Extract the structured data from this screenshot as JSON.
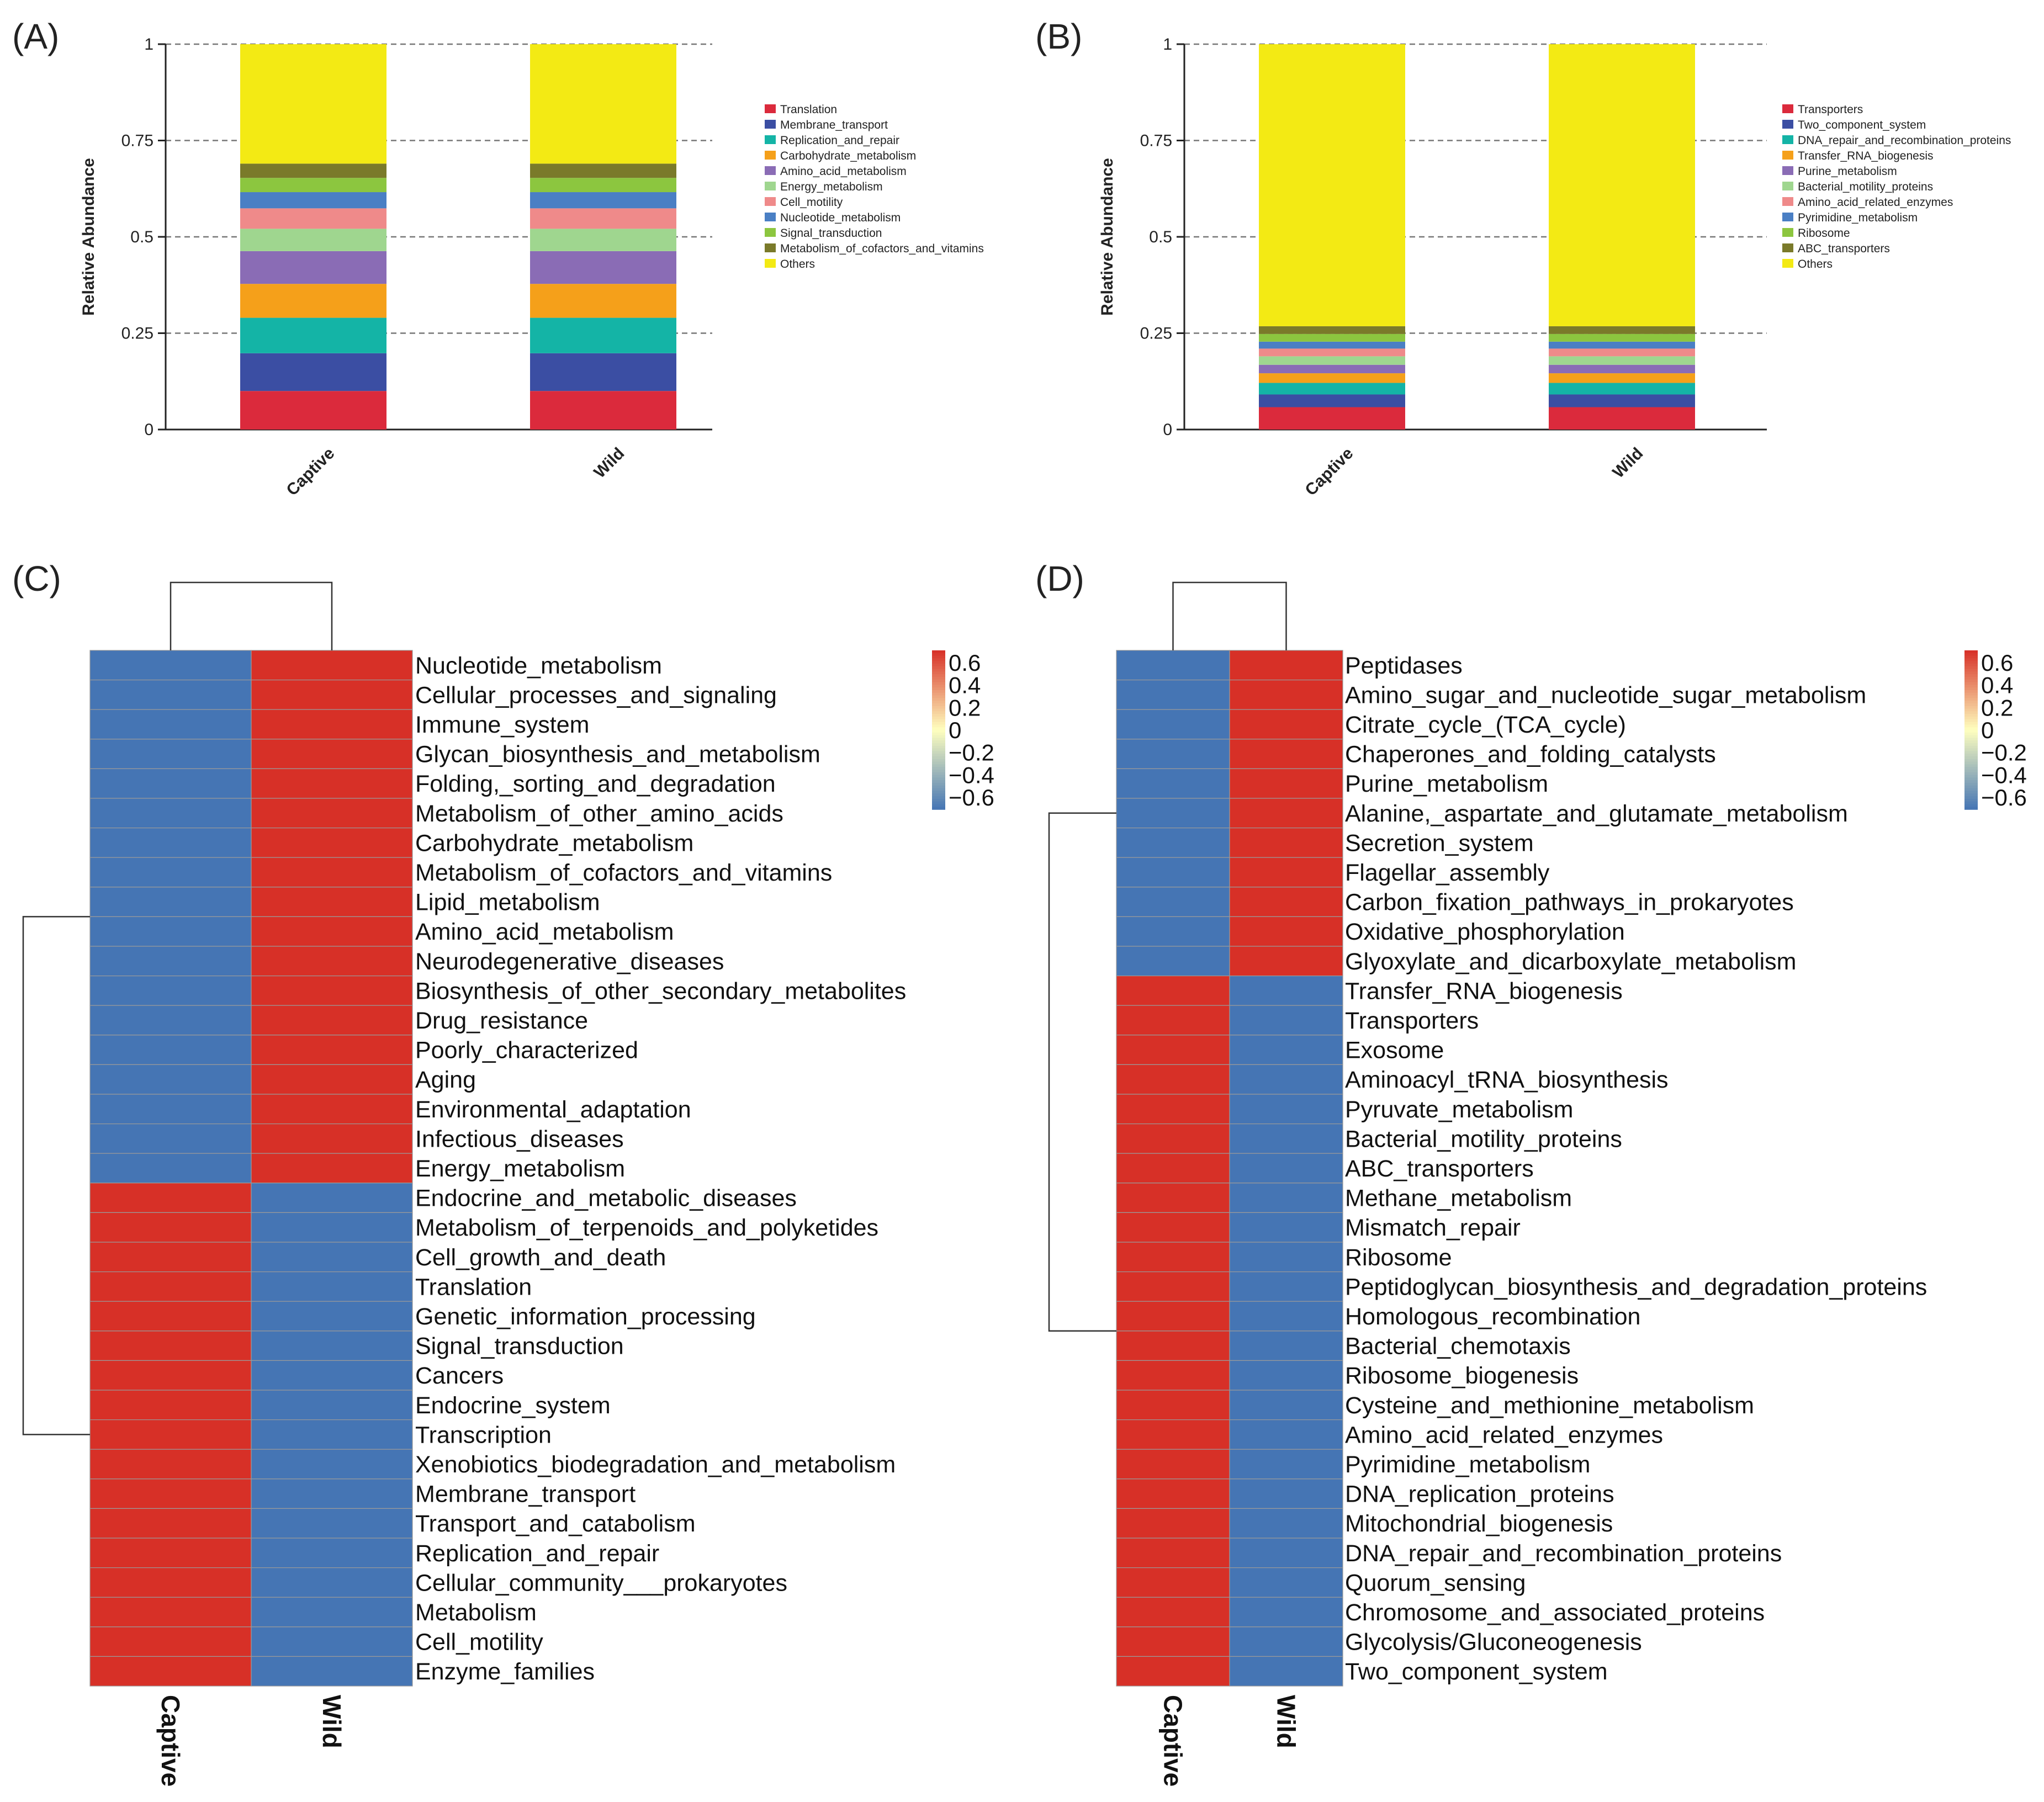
{
  "figure": {
    "panel_labels": [
      "(A)",
      "(B)",
      "(C)",
      "(D)"
    ]
  },
  "colors": {
    "red": "#db2a3c",
    "blue": "#3b4ea3",
    "teal": "#14b4a6",
    "orange": "#f5a01a",
    "purple": "#8a6cb5",
    "light_green": "#9fd68f",
    "pink": "#ef8a8a",
    "steel_blue": "#4a7fc4",
    "lime": "#8cc63f",
    "olive": "#7a7a2a",
    "yellow": "#f3ea14",
    "heat_high": "#d73027",
    "heat_mid": "#ffffbf",
    "heat_low": "#4575b4"
  },
  "chart_data": [
    {
      "panel": "(A)",
      "type": "bar",
      "stacked": true,
      "ylabel": "Relative Abundance",
      "ylim": [
        0,
        1
      ],
      "yticks": [
        "0",
        "0.25",
        "0.5",
        "0.75",
        "1"
      ],
      "categories": [
        "Captive",
        "Wild"
      ],
      "series": [
        {
          "name": "Translation",
          "color": "red",
          "values": [
            0.1,
            0.1
          ]
        },
        {
          "name": "Membrane_transport",
          "color": "blue",
          "values": [
            0.098,
            0.098
          ]
        },
        {
          "name": "Replication_and_repair",
          "color": "teal",
          "values": [
            0.092,
            0.092
          ]
        },
        {
          "name": "Carbohydrate_metabolism",
          "color": "orange",
          "values": [
            0.088,
            0.088
          ]
        },
        {
          "name": "Amino_acid_metabolism",
          "color": "purple",
          "values": [
            0.085,
            0.085
          ]
        },
        {
          "name": "Energy_metabolism",
          "color": "light_green",
          "values": [
            0.058,
            0.058
          ]
        },
        {
          "name": "Cell_motility",
          "color": "pink",
          "values": [
            0.053,
            0.053
          ]
        },
        {
          "name": "Nucleotide_metabolism",
          "color": "steel_blue",
          "values": [
            0.042,
            0.042
          ]
        },
        {
          "name": "Signal_transduction",
          "color": "lime",
          "values": [
            0.037,
            0.037
          ]
        },
        {
          "name": "Metabolism_of_cofactors_and_vitamins",
          "color": "olive",
          "values": [
            0.037,
            0.037
          ]
        },
        {
          "name": "Others",
          "color": "yellow",
          "values": [
            0.31,
            0.31
          ]
        }
      ]
    },
    {
      "panel": "(B)",
      "type": "bar",
      "stacked": true,
      "ylabel": "Relative Abundance",
      "ylim": [
        0,
        1
      ],
      "yticks": [
        "0",
        "0.25",
        "0.5",
        "0.75",
        "1"
      ],
      "categories": [
        "Captive",
        "Wild"
      ],
      "series": [
        {
          "name": "Transporters",
          "color": "red",
          "values": [
            0.058,
            0.058
          ]
        },
        {
          "name": "Two_component_system",
          "color": "blue",
          "values": [
            0.033,
            0.033
          ]
        },
        {
          "name": "DNA_repair_and_recombination_proteins",
          "color": "teal",
          "values": [
            0.03,
            0.03
          ]
        },
        {
          "name": "Transfer_RNA_biogenesis",
          "color": "orange",
          "values": [
            0.025,
            0.025
          ]
        },
        {
          "name": "Purine_metabolism",
          "color": "purple",
          "values": [
            0.022,
            0.022
          ]
        },
        {
          "name": "Bacterial_motility_proteins",
          "color": "light_green",
          "values": [
            0.022,
            0.022
          ]
        },
        {
          "name": "Amino_acid_related_enzymes",
          "color": "pink",
          "values": [
            0.02,
            0.02
          ]
        },
        {
          "name": "Pyrimidine_metabolism",
          "color": "steel_blue",
          "values": [
            0.018,
            0.018
          ]
        },
        {
          "name": "Ribosome",
          "color": "lime",
          "values": [
            0.02,
            0.02
          ]
        },
        {
          "name": "ABC_transporters",
          "color": "olive",
          "values": [
            0.02,
            0.02
          ]
        },
        {
          "name": "Others",
          "color": "yellow",
          "values": [
            0.732,
            0.732
          ]
        }
      ]
    },
    {
      "panel": "(C)",
      "type": "heatmap",
      "columns": [
        "Captive",
        "Wild"
      ],
      "colorbar_ticks": [
        "0.6",
        "0.4",
        "0.2",
        "0",
        "−0.2",
        "−0.4",
        "−0.6"
      ],
      "colorbar_range": [
        -0.707,
        0.707
      ],
      "rows": [
        {
          "name": "Nucleotide_metabolism",
          "values": [
            -0.707,
            0.707
          ]
        },
        {
          "name": "Cellular_processes_and_signaling",
          "values": [
            -0.707,
            0.707
          ]
        },
        {
          "name": "Immune_system",
          "values": [
            -0.707,
            0.707
          ]
        },
        {
          "name": "Glycan_biosynthesis_and_metabolism",
          "values": [
            -0.707,
            0.707
          ]
        },
        {
          "name": "Folding,_sorting_and_degradation",
          "values": [
            -0.707,
            0.707
          ]
        },
        {
          "name": "Metabolism_of_other_amino_acids",
          "values": [
            -0.707,
            0.707
          ]
        },
        {
          "name": "Carbohydrate_metabolism",
          "values": [
            -0.707,
            0.707
          ]
        },
        {
          "name": "Metabolism_of_cofactors_and_vitamins",
          "values": [
            -0.707,
            0.707
          ]
        },
        {
          "name": "Lipid_metabolism",
          "values": [
            -0.707,
            0.707
          ]
        },
        {
          "name": "Amino_acid_metabolism",
          "values": [
            -0.707,
            0.707
          ]
        },
        {
          "name": "Neurodegenerative_diseases",
          "values": [
            -0.707,
            0.707
          ]
        },
        {
          "name": "Biosynthesis_of_other_secondary_metabolites",
          "values": [
            -0.707,
            0.707
          ]
        },
        {
          "name": "Drug_resistance",
          "values": [
            -0.707,
            0.707
          ]
        },
        {
          "name": "Poorly_characterized",
          "values": [
            -0.707,
            0.707
          ]
        },
        {
          "name": "Aging",
          "values": [
            -0.707,
            0.707
          ]
        },
        {
          "name": "Environmental_adaptation",
          "values": [
            -0.707,
            0.707
          ]
        },
        {
          "name": "Infectious_diseases",
          "values": [
            -0.707,
            0.707
          ]
        },
        {
          "name": "Energy_metabolism",
          "values": [
            -0.707,
            0.707
          ]
        },
        {
          "name": "Endocrine_and_metabolic_diseases",
          "values": [
            0.707,
            -0.707
          ]
        },
        {
          "name": "Metabolism_of_terpenoids_and_polyketides",
          "values": [
            0.707,
            -0.707
          ]
        },
        {
          "name": "Cell_growth_and_death",
          "values": [
            0.707,
            -0.707
          ]
        },
        {
          "name": "Translation",
          "values": [
            0.707,
            -0.707
          ]
        },
        {
          "name": "Genetic_information_processing",
          "values": [
            0.707,
            -0.707
          ]
        },
        {
          "name": "Signal_transduction",
          "values": [
            0.707,
            -0.707
          ]
        },
        {
          "name": "Cancers",
          "values": [
            0.707,
            -0.707
          ]
        },
        {
          "name": "Endocrine_system",
          "values": [
            0.707,
            -0.707
          ]
        },
        {
          "name": "Transcription",
          "values": [
            0.707,
            -0.707
          ]
        },
        {
          "name": "Xenobiotics_biodegradation_and_metabolism",
          "values": [
            0.707,
            -0.707
          ]
        },
        {
          "name": "Membrane_transport",
          "values": [
            0.707,
            -0.707
          ]
        },
        {
          "name": "Transport_and_catabolism",
          "values": [
            0.707,
            -0.707
          ]
        },
        {
          "name": "Replication_and_repair",
          "values": [
            0.707,
            -0.707
          ]
        },
        {
          "name": "Cellular_community___prokaryotes",
          "values": [
            0.707,
            -0.707
          ]
        },
        {
          "name": "Metabolism",
          "values": [
            0.707,
            -0.707
          ]
        },
        {
          "name": "Cell_motility",
          "values": [
            0.707,
            -0.707
          ]
        },
        {
          "name": "Enzyme_families",
          "values": [
            0.707,
            -0.707
          ]
        }
      ]
    },
    {
      "panel": "(D)",
      "type": "heatmap",
      "columns": [
        "Captive",
        "Wild"
      ],
      "colorbar_ticks": [
        "0.6",
        "0.4",
        "0.2",
        "0",
        "−0.2",
        "−0.4",
        "−0.6"
      ],
      "colorbar_range": [
        -0.707,
        0.707
      ],
      "rows": [
        {
          "name": "Peptidases",
          "values": [
            -0.707,
            0.707
          ]
        },
        {
          "name": "Amino_sugar_and_nucleotide_sugar_metabolism",
          "values": [
            -0.707,
            0.707
          ]
        },
        {
          "name": "Citrate_cycle_(TCA_cycle)",
          "values": [
            -0.707,
            0.707
          ]
        },
        {
          "name": "Chaperones_and_folding_catalysts",
          "values": [
            -0.707,
            0.707
          ]
        },
        {
          "name": "Purine_metabolism",
          "values": [
            -0.707,
            0.707
          ]
        },
        {
          "name": "Alanine,_aspartate_and_glutamate_metabolism",
          "values": [
            -0.707,
            0.707
          ]
        },
        {
          "name": "Secretion_system",
          "values": [
            -0.707,
            0.707
          ]
        },
        {
          "name": "Flagellar_assembly",
          "values": [
            -0.707,
            0.707
          ]
        },
        {
          "name": "Carbon_fixation_pathways_in_prokaryotes",
          "values": [
            -0.707,
            0.707
          ]
        },
        {
          "name": "Oxidative_phosphorylation",
          "values": [
            -0.707,
            0.707
          ]
        },
        {
          "name": "Glyoxylate_and_dicarboxylate_metabolism",
          "values": [
            -0.707,
            0.707
          ]
        },
        {
          "name": "Transfer_RNA_biogenesis",
          "values": [
            0.707,
            -0.707
          ]
        },
        {
          "name": "Transporters",
          "values": [
            0.707,
            -0.707
          ]
        },
        {
          "name": "Exosome",
          "values": [
            0.707,
            -0.707
          ]
        },
        {
          "name": "Aminoacyl_tRNA_biosynthesis",
          "values": [
            0.707,
            -0.707
          ]
        },
        {
          "name": "Pyruvate_metabolism",
          "values": [
            0.707,
            -0.707
          ]
        },
        {
          "name": "Bacterial_motility_proteins",
          "values": [
            0.707,
            -0.707
          ]
        },
        {
          "name": "ABC_transporters",
          "values": [
            0.707,
            -0.707
          ]
        },
        {
          "name": "Methane_metabolism",
          "values": [
            0.707,
            -0.707
          ]
        },
        {
          "name": "Mismatch_repair",
          "values": [
            0.707,
            -0.707
          ]
        },
        {
          "name": "Ribosome",
          "values": [
            0.707,
            -0.707
          ]
        },
        {
          "name": "Peptidoglycan_biosynthesis_and_degradation_proteins",
          "values": [
            0.707,
            -0.707
          ]
        },
        {
          "name": "Homologous_recombination",
          "values": [
            0.707,
            -0.707
          ]
        },
        {
          "name": "Bacterial_chemotaxis",
          "values": [
            0.707,
            -0.707
          ]
        },
        {
          "name": "Ribosome_biogenesis",
          "values": [
            0.707,
            -0.707
          ]
        },
        {
          "name": "Cysteine_and_methionine_metabolism",
          "values": [
            0.707,
            -0.707
          ]
        },
        {
          "name": "Amino_acid_related_enzymes",
          "values": [
            0.707,
            -0.707
          ]
        },
        {
          "name": "Pyrimidine_metabolism",
          "values": [
            0.707,
            -0.707
          ]
        },
        {
          "name": "DNA_replication_proteins",
          "values": [
            0.707,
            -0.707
          ]
        },
        {
          "name": "Mitochondrial_biogenesis",
          "values": [
            0.707,
            -0.707
          ]
        },
        {
          "name": "DNA_repair_and_recombination_proteins",
          "values": [
            0.707,
            -0.707
          ]
        },
        {
          "name": "Quorum_sensing",
          "values": [
            0.707,
            -0.707
          ]
        },
        {
          "name": "Chromosome_and_associated_proteins",
          "values": [
            0.707,
            -0.707
          ]
        },
        {
          "name": "Glycolysis/Gluconeogenesis",
          "values": [
            0.707,
            -0.707
          ]
        },
        {
          "name": "Two_component_system",
          "values": [
            0.707,
            -0.707
          ]
        }
      ]
    }
  ]
}
